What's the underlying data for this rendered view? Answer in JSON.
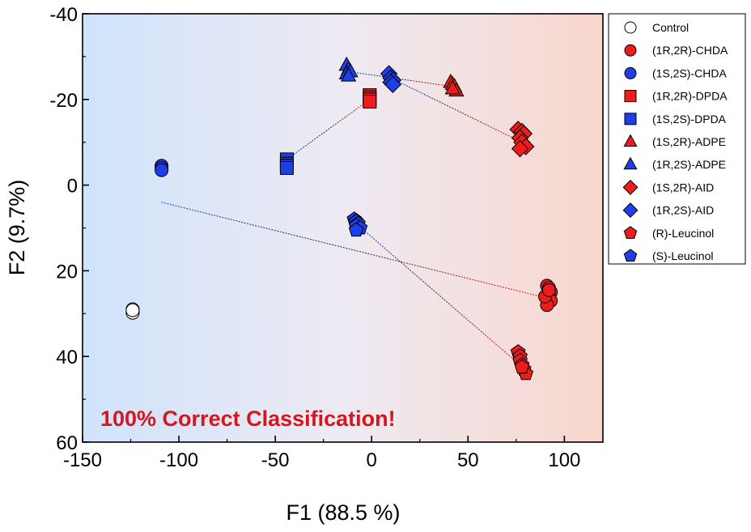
{
  "chart_data": {
    "type": "scatter",
    "xlabel": "F1 (88.5 %)",
    "ylabel": "F2 (9.7%)",
    "xlim": [
      -150,
      120
    ],
    "ylim": [
      60,
      -40
    ],
    "y_axis_inverted": true,
    "xticks": [
      "-150",
      "-100",
      "-50",
      "0",
      "50",
      "100"
    ],
    "yticks": [
      "-40",
      "-20",
      "0",
      "20",
      "40",
      "60"
    ],
    "annotation": "100% Correct Classification!",
    "annotation_color": "#d6161e",
    "background": "gradient light-blue (left) to light-red (right)",
    "grid": false,
    "legend_position": "right outside",
    "colors": {
      "red": "#ee1c1c",
      "blue": "#1f3fe6",
      "control": "#ffffff"
    },
    "series": [
      {
        "name": "Control",
        "marker": "circle",
        "color": "#ffffff",
        "x": [
          -124,
          -124,
          -124,
          -124
        ],
        "y": [
          29,
          29.5,
          29.8,
          29.2
        ]
      },
      {
        "name": "(1R,2R)-CHDA",
        "marker": "circle",
        "color": "#ee1c1c",
        "x": [
          91,
          92,
          93,
          92,
          93,
          91,
          90,
          92
        ],
        "y": [
          23.5,
          24,
          25,
          26,
          27,
          28,
          26,
          24.5
        ]
      },
      {
        "name": "(1S,2S)-CHDA",
        "marker": "circle",
        "color": "#1f3fe6",
        "x": [
          -109,
          -109,
          -109
        ],
        "y": [
          -4.5,
          -4,
          -3.5
        ]
      },
      {
        "name": "(1R,2R)-DPDA",
        "marker": "square",
        "color": "#ee1c1c",
        "x": [
          -1,
          -1,
          -1,
          -1
        ],
        "y": [
          -21,
          -20.5,
          -20,
          -19.5
        ]
      },
      {
        "name": "(1S,2S)-DPDA",
        "marker": "square",
        "color": "#1f3fe6",
        "x": [
          -44,
          -44,
          -44,
          -44
        ],
        "y": [
          -6,
          -5,
          -4.5,
          -4
        ]
      },
      {
        "name": "(1S,2R)-ADPE",
        "marker": "triangle",
        "color": "#ee1c1c",
        "x": [
          41,
          42,
          43,
          44,
          42
        ],
        "y": [
          -24,
          -23.5,
          -23,
          -22,
          -22.5
        ]
      },
      {
        "name": "(1R,2S)-ADPE",
        "marker": "triangle",
        "color": "#1f3fe6",
        "x": [
          -13,
          -12,
          -13,
          -11,
          -12
        ],
        "y": [
          -28,
          -27,
          -26,
          -26.5,
          -25.5
        ]
      },
      {
        "name": "(1S,2R)-AID",
        "marker": "diamond",
        "color": "#ee1c1c",
        "x": [
          76,
          78,
          79,
          77,
          78,
          80,
          77
        ],
        "y": [
          -13,
          -12.5,
          -12,
          -11,
          -10,
          -9,
          -8.5
        ]
      },
      {
        "name": "(1R,2S)-AID",
        "marker": "diamond",
        "color": "#1f3fe6",
        "x": [
          9,
          10,
          11,
          10,
          11
        ],
        "y": [
          -26,
          -25,
          -24.5,
          -24,
          -23.5
        ]
      },
      {
        "name": "(R)-Leucinol",
        "marker": "pentagon",
        "color": "#ee1c1c",
        "x": [
          76,
          77,
          77,
          78,
          79,
          80,
          78
        ],
        "y": [
          39,
          40,
          41,
          42,
          43,
          44,
          42.5
        ]
      },
      {
        "name": "(S)-Leucinol",
        "marker": "pentagon",
        "color": "#1f3fe6",
        "x": [
          -9,
          -8,
          -7,
          -8,
          -6,
          -8
        ],
        "y": [
          8,
          8.5,
          9,
          9.5,
          10,
          10.5
        ]
      }
    ],
    "connector_lines": [
      {
        "from": [
          -109,
          4
        ],
        "to": [
          92,
          26.5
        ]
      },
      {
        "from": [
          -44,
          -6
        ],
        "to": [
          -1,
          -20
        ]
      },
      {
        "from": [
          -12,
          -26.5
        ],
        "to": [
          42,
          -23
        ]
      },
      {
        "from": [
          10,
          -25
        ],
        "to": [
          78,
          -10
        ]
      },
      {
        "from": [
          -8,
          9
        ],
        "to": [
          77,
          42
        ]
      }
    ]
  }
}
